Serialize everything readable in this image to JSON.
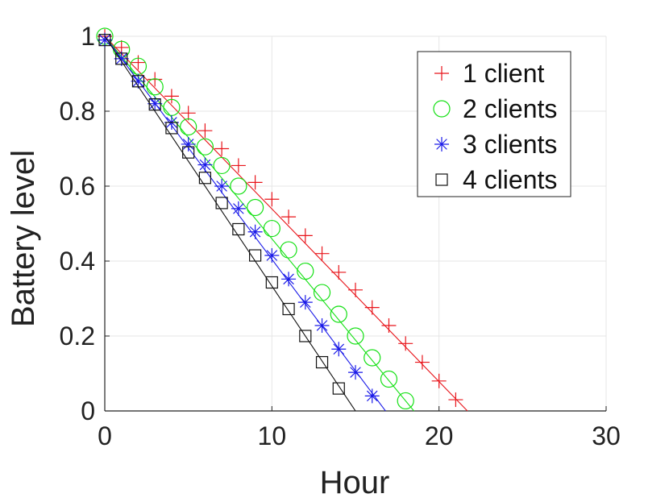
{
  "chart_data": {
    "type": "line",
    "xlabel": "Hour",
    "ylabel": "Battery level",
    "xlim": [
      0,
      30
    ],
    "ylim": [
      0,
      1
    ],
    "xticks": [
      "0",
      "10",
      "20",
      "30"
    ],
    "yticks": [
      "0",
      "0.2",
      "0.4",
      "0.6",
      "0.8",
      "1"
    ],
    "grid": true,
    "legend_position": "top-right",
    "series": [
      {
        "name": "1 client",
        "color": "#e8141a",
        "marker": "plus",
        "line": [
          [
            0,
            1.0
          ],
          [
            21.7,
            0.0
          ]
        ],
        "x": [
          0,
          1,
          2,
          3,
          4,
          5,
          6,
          7,
          8,
          9,
          10,
          11,
          12,
          13,
          14,
          15,
          16,
          17,
          18,
          19,
          20,
          21
        ],
        "y": [
          1.0,
          0.97,
          0.93,
          0.885,
          0.84,
          0.795,
          0.748,
          0.7,
          0.655,
          0.61,
          0.565,
          0.518,
          0.468,
          0.42,
          0.37,
          0.323,
          0.276,
          0.228,
          0.18,
          0.13,
          0.08,
          0.03
        ]
      },
      {
        "name": "2 clients",
        "color": "#15e015",
        "marker": "circle",
        "line": [
          [
            0,
            1.0
          ],
          [
            18.5,
            0.0
          ]
        ],
        "x": [
          0,
          1,
          2,
          3,
          4,
          5,
          6,
          7,
          8,
          9,
          10,
          11,
          12,
          13,
          14,
          15,
          16,
          17,
          18
        ],
        "y": [
          1.0,
          0.965,
          0.92,
          0.865,
          0.81,
          0.758,
          0.705,
          0.655,
          0.6,
          0.543,
          0.487,
          0.43,
          0.373,
          0.316,
          0.258,
          0.2,
          0.142,
          0.085,
          0.027
        ]
      },
      {
        "name": "3 clients",
        "color": "#1a1ae8",
        "marker": "asterisk",
        "line": [
          [
            0,
            1.0
          ],
          [
            16.8,
            0.0
          ]
        ],
        "x": [
          0,
          1,
          2,
          3,
          4,
          5,
          6,
          7,
          8,
          9,
          10,
          11,
          12,
          13,
          14,
          15,
          16
        ],
        "y": [
          0.99,
          0.94,
          0.88,
          0.82,
          0.77,
          0.712,
          0.657,
          0.6,
          0.54,
          0.478,
          0.415,
          0.352,
          0.29,
          0.228,
          0.165,
          0.103,
          0.04
        ]
      },
      {
        "name": "4 clients",
        "color": "#111111",
        "marker": "square",
        "line": [
          [
            0,
            1.0
          ],
          [
            15.0,
            0.0
          ]
        ],
        "x": [
          0,
          1,
          2,
          3,
          4,
          5,
          6,
          7,
          8,
          9,
          10,
          11,
          12,
          13,
          14
        ],
        "y": [
          0.99,
          0.94,
          0.88,
          0.818,
          0.755,
          0.69,
          0.622,
          0.555,
          0.485,
          0.415,
          0.343,
          0.272,
          0.2,
          0.13,
          0.06
        ]
      }
    ]
  }
}
